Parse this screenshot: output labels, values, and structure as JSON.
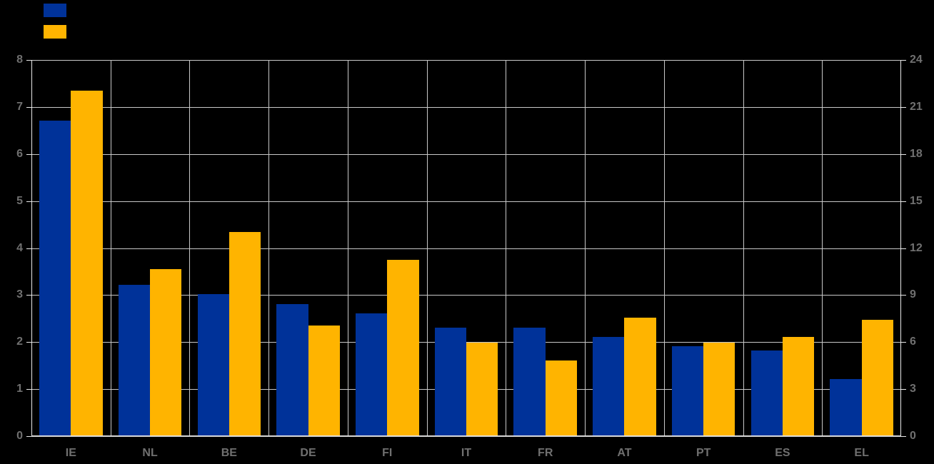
{
  "chart_data": {
    "type": "bar",
    "title": "",
    "categories": [
      "IE",
      "NL",
      "BE",
      "DE",
      "FI",
      "IT",
      "FR",
      "AT",
      "PT",
      "ES",
      "EL"
    ],
    "series": [
      {
        "name": "blue-series",
        "axis": "left",
        "color": "#003299",
        "values": [
          6.7,
          3.2,
          3.0,
          2.8,
          2.6,
          2.3,
          2.3,
          2.1,
          1.9,
          1.8,
          1.2
        ]
      },
      {
        "name": "yellow-series",
        "axis": "right",
        "color": "#FFB400",
        "values": [
          22.0,
          10.6,
          13.0,
          7.0,
          11.2,
          5.9,
          4.8,
          7.5,
          5.9,
          6.3,
          7.4
        ]
      }
    ],
    "left_axis": {
      "min": 0,
      "max": 8,
      "step": 1,
      "ticks": [
        8,
        7,
        6,
        5,
        4,
        3,
        2,
        1,
        0
      ]
    },
    "right_axis": {
      "min": 0,
      "max": 24,
      "step": 3,
      "ticks": [
        24,
        21,
        18,
        15,
        12,
        9,
        6,
        3,
        0
      ]
    },
    "grid": true,
    "legend_position": "top-left",
    "legend": [
      {
        "swatch_color": "#003299",
        "label": ""
      },
      {
        "swatch_color": "#FFB400",
        "label": ""
      }
    ]
  },
  "colors": {
    "background": "#000000",
    "gridline": "#c8c8c8",
    "axis_border": "#e8e8e8",
    "label_gray": "#707070",
    "bar_blue": "#003299",
    "bar_yellow": "#FFB400"
  }
}
